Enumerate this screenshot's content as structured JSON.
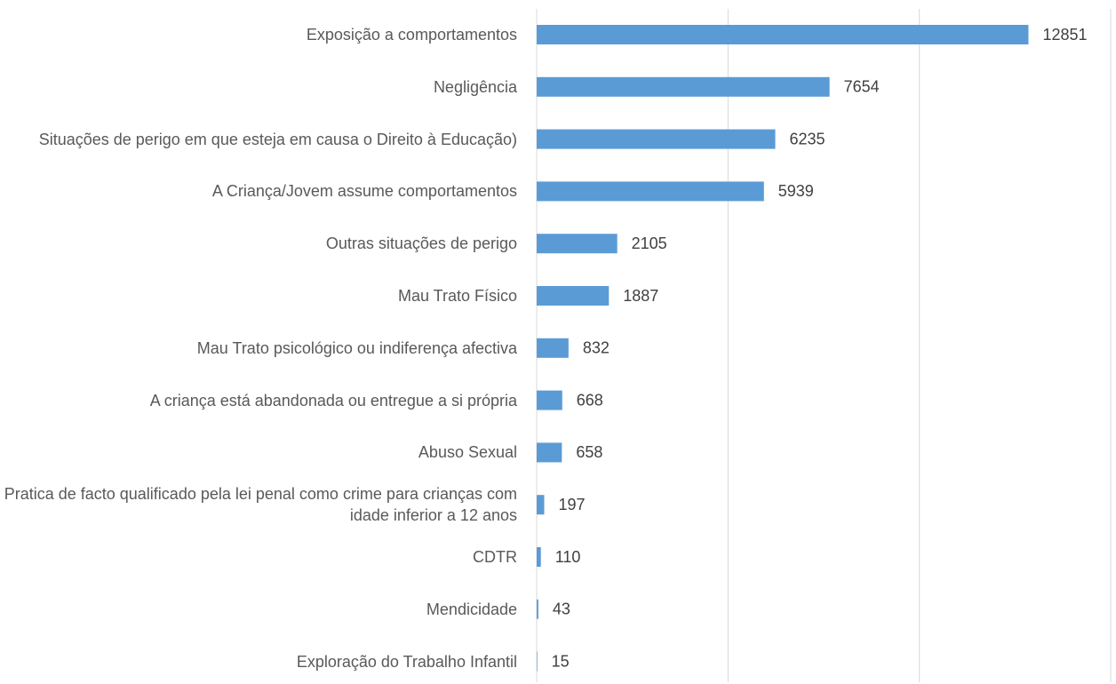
{
  "chart_data": {
    "type": "hbar",
    "categories": [
      "Exposição a comportamentos",
      "Negligência",
      "Situações de perigo em que esteja em causa o Direito à Educação)",
      "A Criança/Jovem assume comportamentos",
      "Outras situações de perigo",
      "Mau Trato Físico",
      "Mau Trato psicológico ou indiferença afectiva",
      "A criança está abandonada ou entregue a si própria",
      "Abuso Sexual",
      "Pratica de facto qualificado pela lei penal como crime para crianças com idade inferior a 12 anos",
      "CDTR",
      "Mendicidade",
      "Exploração do Trabalho Infantil"
    ],
    "values": [
      12851,
      7654,
      6235,
      5939,
      2105,
      1887,
      832,
      668,
      658,
      197,
      110,
      43,
      15
    ],
    "color": "#5b9bd5",
    "xlim": [
      0,
      15000
    ],
    "xticks": [
      0,
      5000,
      10000,
      15000
    ],
    "grid": true
  }
}
